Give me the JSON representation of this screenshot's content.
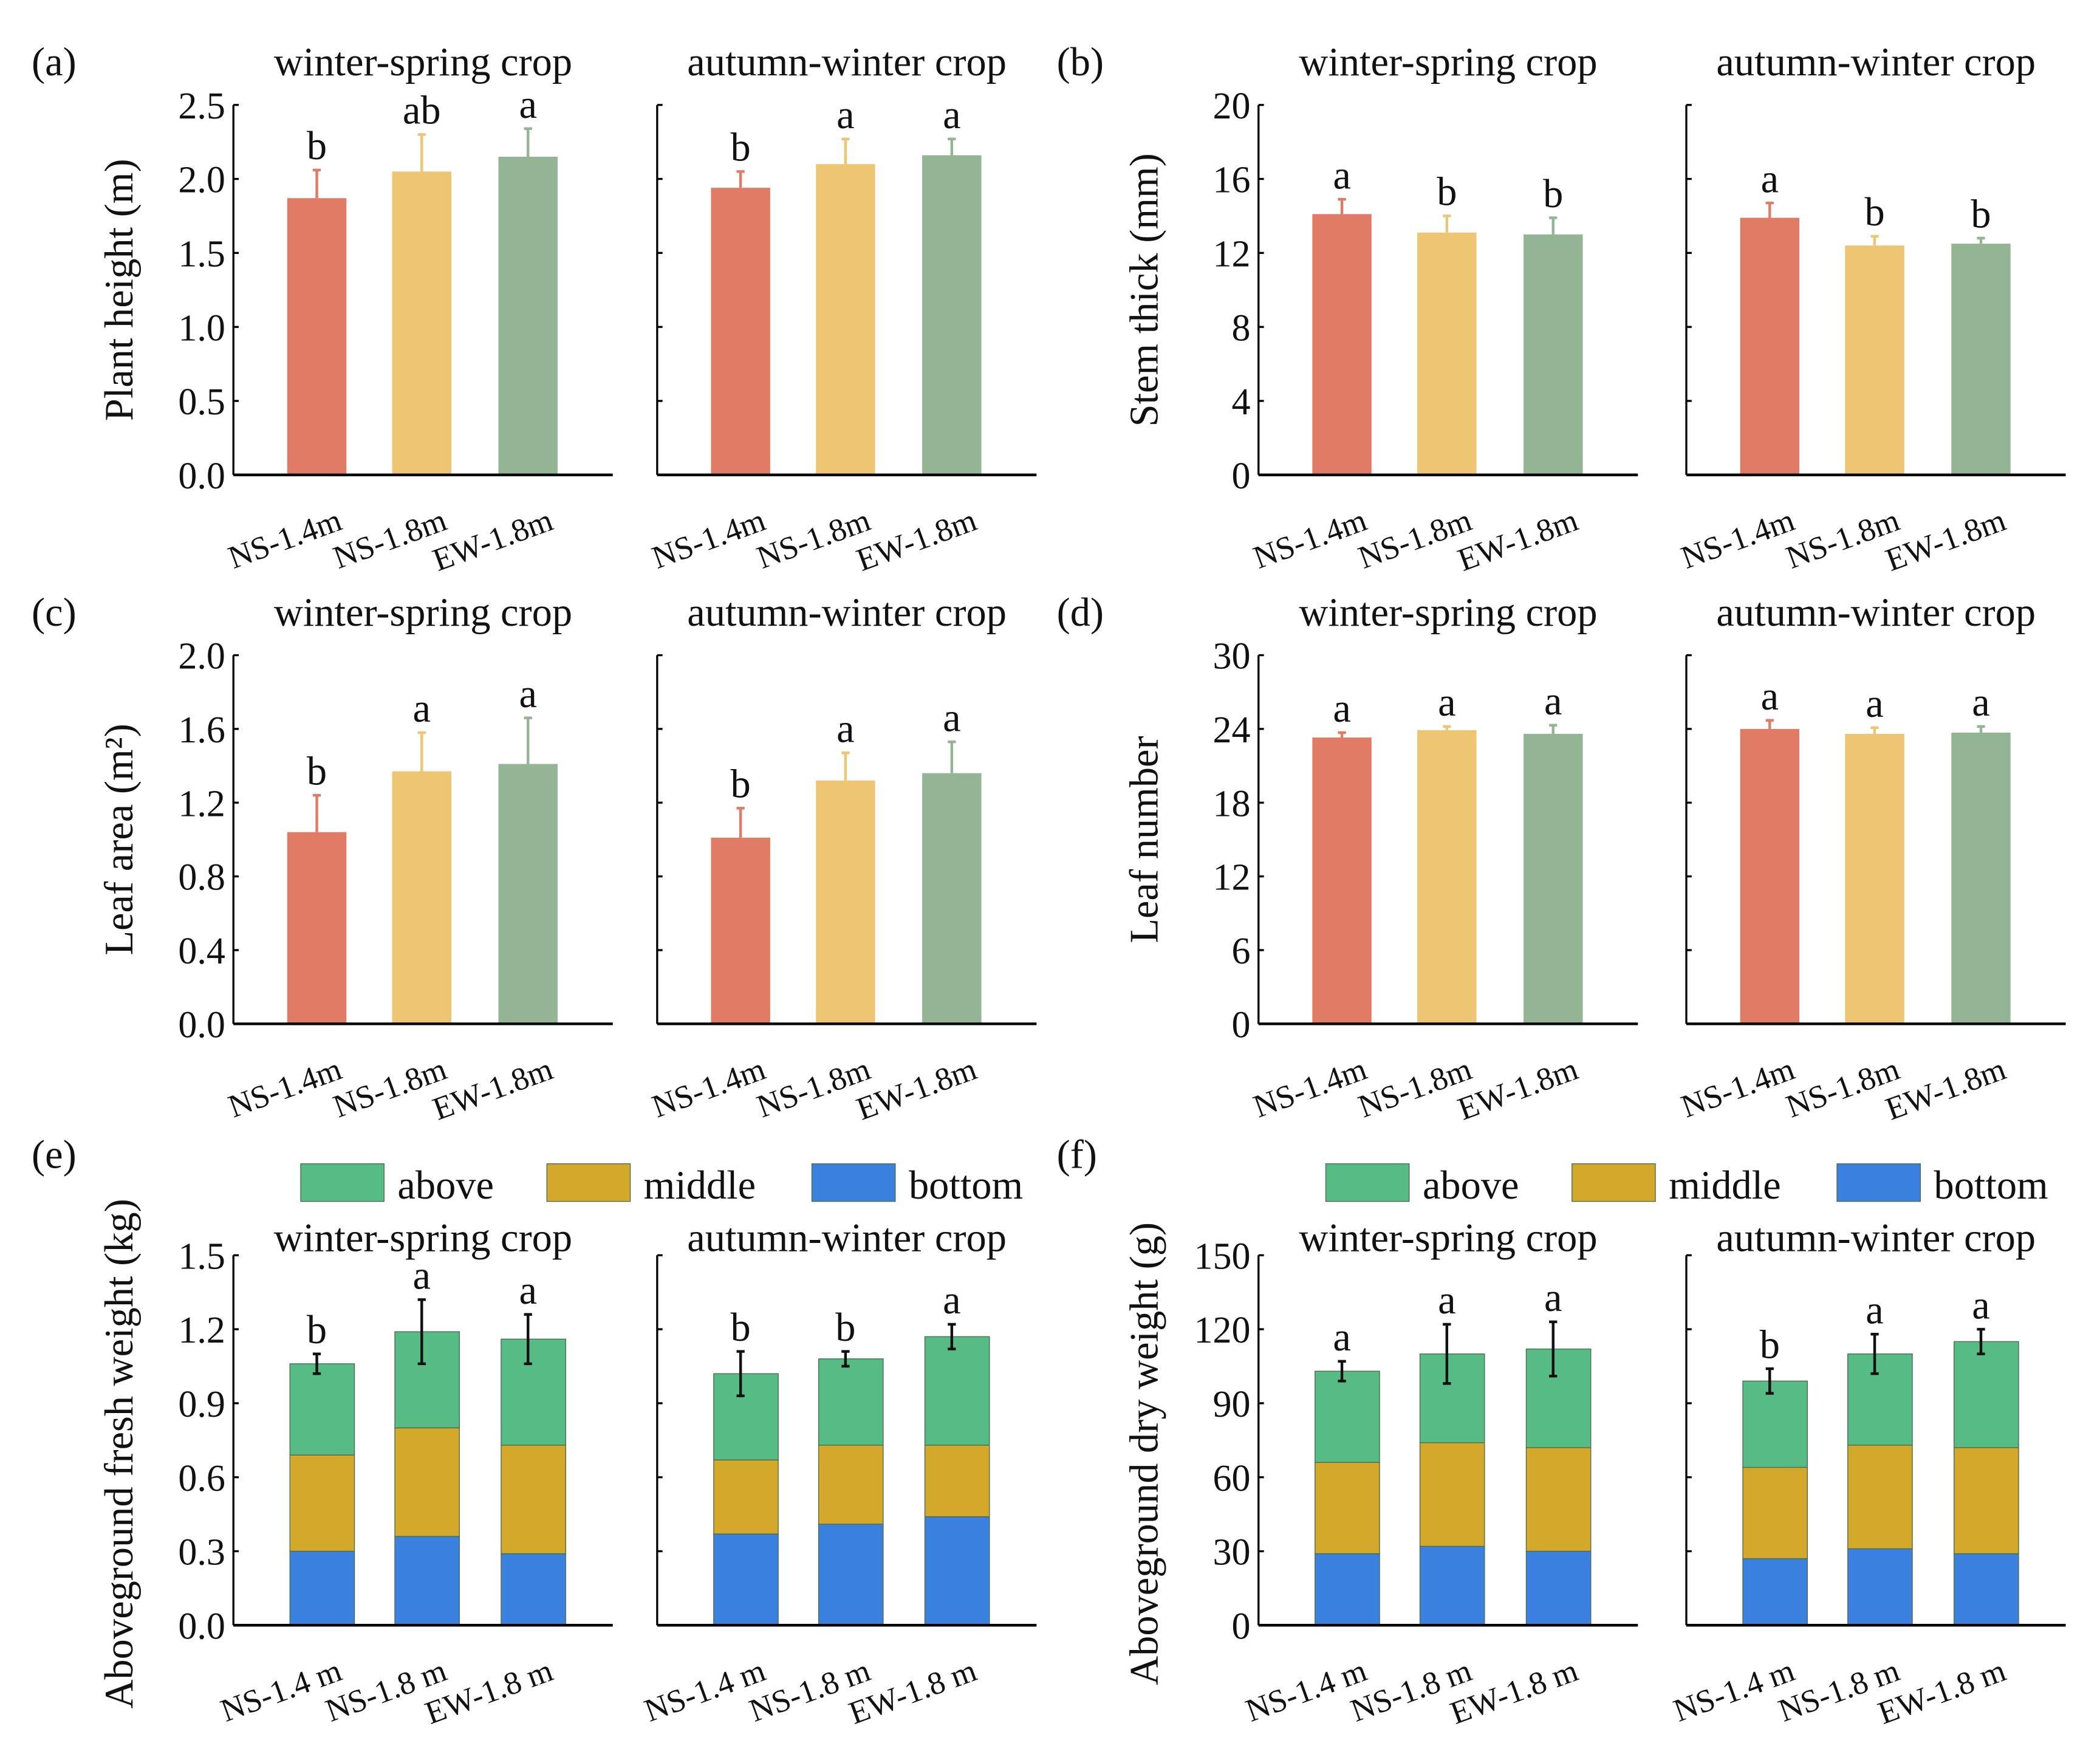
{
  "colors": {
    "ns14": "#e07b65",
    "ns18": "#eec673",
    "ew18": "#93b594",
    "above": "#56bb85",
    "middle": "#d4a82a",
    "bottom": "#3b82e0",
    "error": "#111111"
  },
  "legend": [
    "above",
    "middle",
    "bottom"
  ],
  "chart_data": [
    {
      "panel": "(a)",
      "type": "bar",
      "ylabel": "Plant height (m)",
      "ylim": [
        0,
        2.5
      ],
      "yticks": [
        "0.0",
        "0.5",
        "1.0",
        "1.5",
        "2.0",
        "2.5"
      ],
      "categories": [
        "NS-1.4m",
        "NS-1.8m",
        "EW-1.8m"
      ],
      "subplots": [
        {
          "title": "winter-spring crop",
          "values": [
            1.87,
            2.05,
            2.15
          ],
          "errors": [
            0.19,
            0.25,
            0.19
          ],
          "letters": [
            "b",
            "ab",
            "a"
          ]
        },
        {
          "title": "autumn-winter crop",
          "values": [
            1.94,
            2.1,
            2.16
          ],
          "errors": [
            0.11,
            0.17,
            0.11
          ],
          "letters": [
            "b",
            "a",
            "a"
          ]
        }
      ]
    },
    {
      "panel": "(b)",
      "type": "bar",
      "ylabel": "Stem thick (mm)",
      "ylim": [
        0,
        20
      ],
      "yticks": [
        "0",
        "4",
        "8",
        "12",
        "16",
        "20"
      ],
      "categories": [
        "NS-1.4m",
        "NS-1.8m",
        "EW-1.8m"
      ],
      "subplots": [
        {
          "title": "winter-spring crop",
          "values": [
            14.1,
            13.1,
            13.0
          ],
          "errors": [
            0.8,
            0.9,
            0.9
          ],
          "letters": [
            "a",
            "b",
            "b"
          ]
        },
        {
          "title": "autumn-winter crop",
          "values": [
            13.9,
            12.4,
            12.5
          ],
          "errors": [
            0.8,
            0.5,
            0.3
          ],
          "letters": [
            "a",
            "b",
            "b"
          ]
        }
      ]
    },
    {
      "panel": "(c)",
      "type": "bar",
      "ylabel": "Leaf area (m²)",
      "ylim": [
        0,
        2.0
      ],
      "yticks": [
        "0.0",
        "0.4",
        "0.8",
        "1.2",
        "1.6",
        "2.0"
      ],
      "categories": [
        "NS-1.4m",
        "NS-1.8m",
        "EW-1.8m"
      ],
      "subplots": [
        {
          "title": "winter-spring crop",
          "values": [
            1.04,
            1.37,
            1.41
          ],
          "errors": [
            0.2,
            0.21,
            0.25
          ],
          "letters": [
            "b",
            "a",
            "a"
          ]
        },
        {
          "title": "autumn-winter crop",
          "values": [
            1.01,
            1.32,
            1.36
          ],
          "errors": [
            0.16,
            0.15,
            0.17
          ],
          "letters": [
            "b",
            "a",
            "a"
          ]
        }
      ]
    },
    {
      "panel": "(d)",
      "type": "bar",
      "ylabel": "Leaf number",
      "ylim": [
        0,
        30
      ],
      "yticks": [
        "0",
        "6",
        "12",
        "18",
        "24",
        "30"
      ],
      "categories": [
        "NS-1.4m",
        "NS-1.8m",
        "EW-1.8m"
      ],
      "subplots": [
        {
          "title": "winter-spring crop",
          "values": [
            23.3,
            23.9,
            23.6
          ],
          "errors": [
            0.4,
            0.3,
            0.7
          ],
          "letters": [
            "a",
            "a",
            "a"
          ]
        },
        {
          "title": "autumn-winter crop",
          "values": [
            24.0,
            23.6,
            23.7
          ],
          "errors": [
            0.7,
            0.5,
            0.5
          ],
          "letters": [
            "a",
            "a",
            "a"
          ]
        }
      ]
    },
    {
      "panel": "(e)",
      "type": "stacked-bar",
      "ylabel": "Aboveground fresh weight (kg)",
      "ylim": [
        0,
        1.5
      ],
      "yticks": [
        "0.0",
        "0.3",
        "0.6",
        "0.9",
        "1.2",
        "1.5"
      ],
      "categories": [
        "NS-1.4 m",
        "NS-1.8 m",
        "EW-1.8 m"
      ],
      "stack_order": [
        "bottom",
        "middle",
        "above"
      ],
      "subplots": [
        {
          "title": "winter-spring crop",
          "segments": [
            [
              0.3,
              0.39,
              0.37
            ],
            [
              0.36,
              0.44,
              0.39
            ],
            [
              0.29,
              0.44,
              0.43
            ]
          ],
          "errors": [
            0.04,
            0.13,
            0.1
          ],
          "letters": [
            "b",
            "a",
            "a"
          ]
        },
        {
          "title": "autumn-winter crop",
          "segments": [
            [
              0.37,
              0.3,
              0.35
            ],
            [
              0.41,
              0.32,
              0.35
            ],
            [
              0.44,
              0.29,
              0.44
            ]
          ],
          "errors": [
            0.09,
            0.03,
            0.05
          ],
          "letters": [
            "b",
            "b",
            "a"
          ]
        }
      ]
    },
    {
      "panel": "(f)",
      "type": "stacked-bar",
      "ylabel": "Aboveground dry weight (g)",
      "ylim": [
        0,
        150
      ],
      "yticks": [
        "0",
        "30",
        "60",
        "90",
        "120",
        "150"
      ],
      "categories": [
        "NS-1.4 m",
        "NS-1.8 m",
        "EW-1.8 m"
      ],
      "stack_order": [
        "bottom",
        "middle",
        "above"
      ],
      "subplots": [
        {
          "title": "winter-spring crop",
          "segments": [
            [
              29,
              37,
              37
            ],
            [
              32,
              42,
              36
            ],
            [
              30,
              42,
              40
            ]
          ],
          "errors": [
            4,
            12,
            11
          ],
          "letters": [
            "a",
            "a",
            "a"
          ]
        },
        {
          "title": "autumn-winter crop",
          "segments": [
            [
              27,
              37,
              35
            ],
            [
              31,
              42,
              37
            ],
            [
              29,
              43,
              43
            ]
          ],
          "errors": [
            5,
            8,
            5
          ],
          "letters": [
            "b",
            "a",
            "a"
          ]
        }
      ]
    }
  ]
}
